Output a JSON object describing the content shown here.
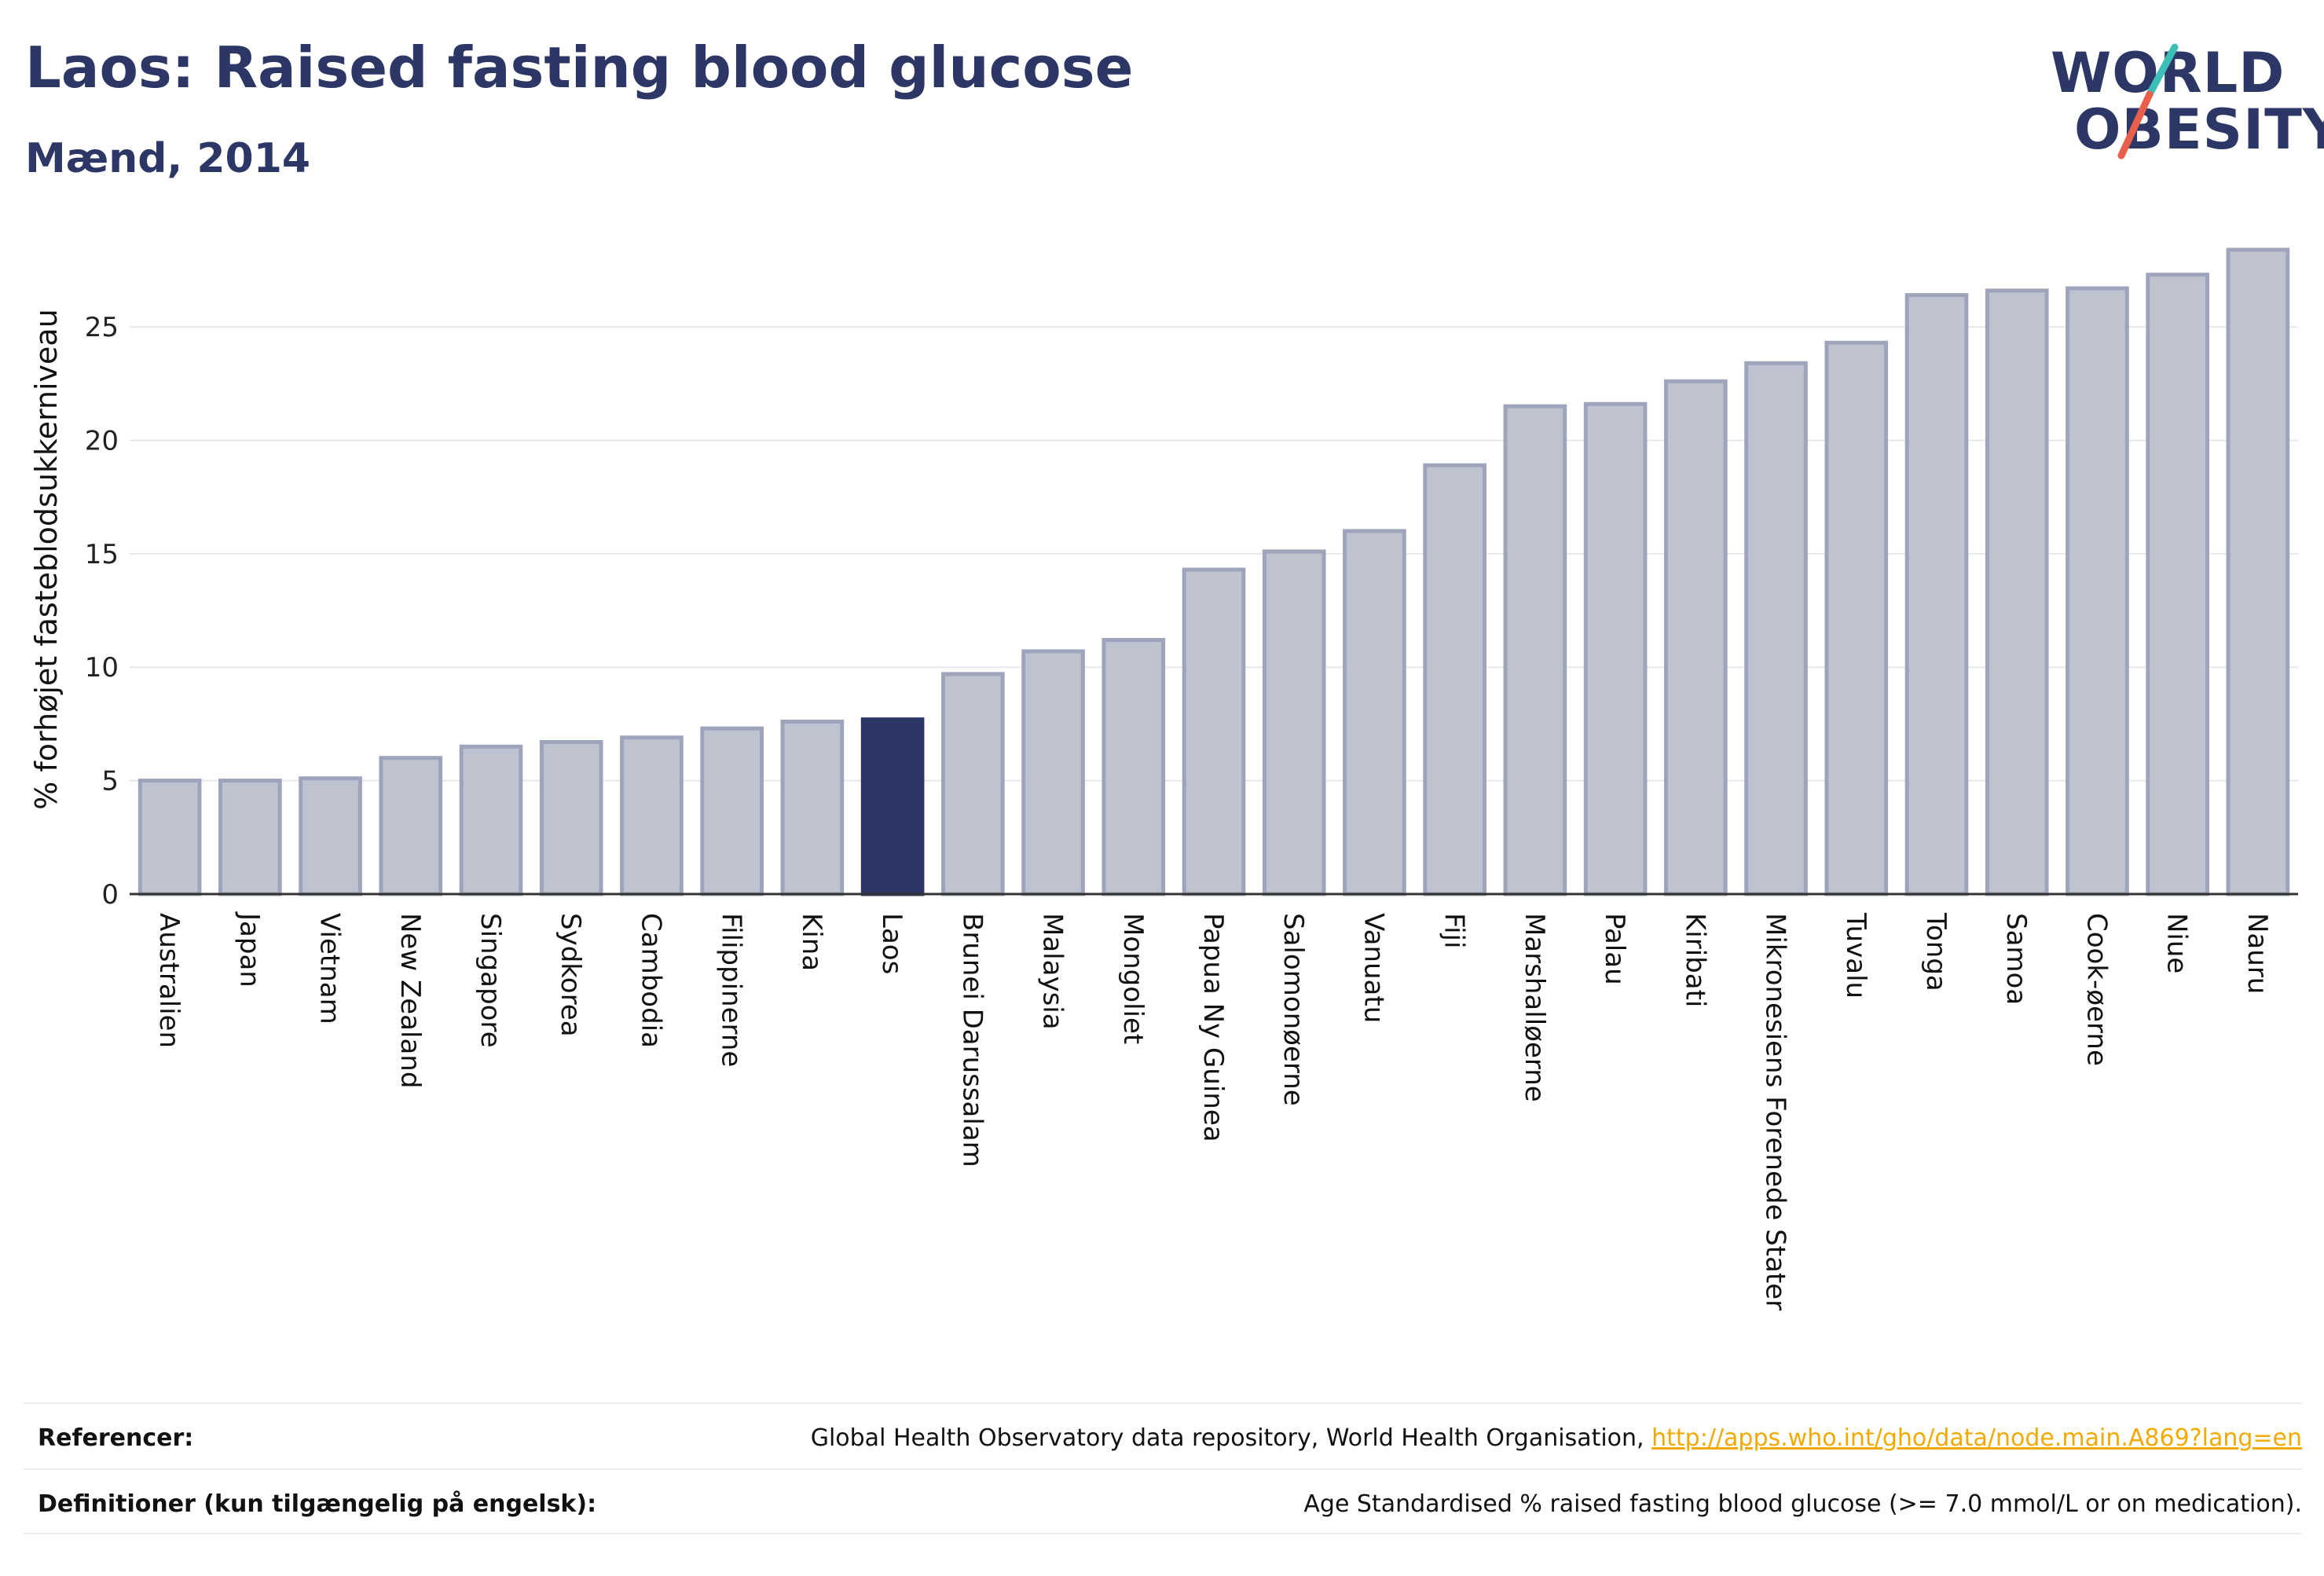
{
  "header": {
    "title": "Laos: Raised fasting blood glucose",
    "subtitle": "Mænd, 2014"
  },
  "logo": {
    "line1": "WORLD",
    "line2": "OBESITY",
    "accent_colors": [
      "#3dbfb8",
      "#e8604c"
    ]
  },
  "chart_data": {
    "type": "bar",
    "title": "Laos: Raised fasting blood glucose",
    "subtitle": "Mænd, 2014",
    "xlabel": "",
    "ylabel": "% forhøjet fasteblodsukkerniveau",
    "ylim": [
      0,
      28.5
    ],
    "yticks": [
      0,
      5,
      10,
      15,
      20,
      25
    ],
    "grid": true,
    "highlight": "Laos",
    "colors": {
      "default": "#bfc3d0",
      "default_edge": "#9ea4bb",
      "highlight": "#2c3765"
    },
    "categories": [
      "Australien",
      "Japan",
      "Vietnam",
      "New Zealand",
      "Singapore",
      "Sydkorea",
      "Cambodia",
      "Filippinerne",
      "Kina",
      "Laos",
      "Brunei Darussalam",
      "Malaysia",
      "Mongoliet",
      "Papua Ny Guinea",
      "Salomonøerne",
      "Vanuatu",
      "Fiji",
      "Marshalløerne",
      "Palau",
      "Kiribati",
      "Mikronesiens Forenede Stater",
      "Tuvalu",
      "Tonga",
      "Samoa",
      "Cook-øerne",
      "Niue",
      "Nauru"
    ],
    "values": [
      5.0,
      5.0,
      5.1,
      6.0,
      6.5,
      6.7,
      6.9,
      7.3,
      7.6,
      7.7,
      9.7,
      10.7,
      11.2,
      14.3,
      15.1,
      16.0,
      18.9,
      21.5,
      21.6,
      22.6,
      23.4,
      24.3,
      26.4,
      26.6,
      26.7,
      27.3,
      28.4
    ]
  },
  "footer": {
    "references_label": "Referencer:",
    "references_text": "Global Health Observatory data repository, World Health Organisation,",
    "references_link": "http://apps.who.int/gho/data/node.main.A869?lang=en",
    "definitions_label": "Definitioner (kun tilgængelig på engelsk):",
    "definitions_text": "Age Standardised % raised fasting blood glucose (>= 7.0 mmol/L or on medication)."
  }
}
